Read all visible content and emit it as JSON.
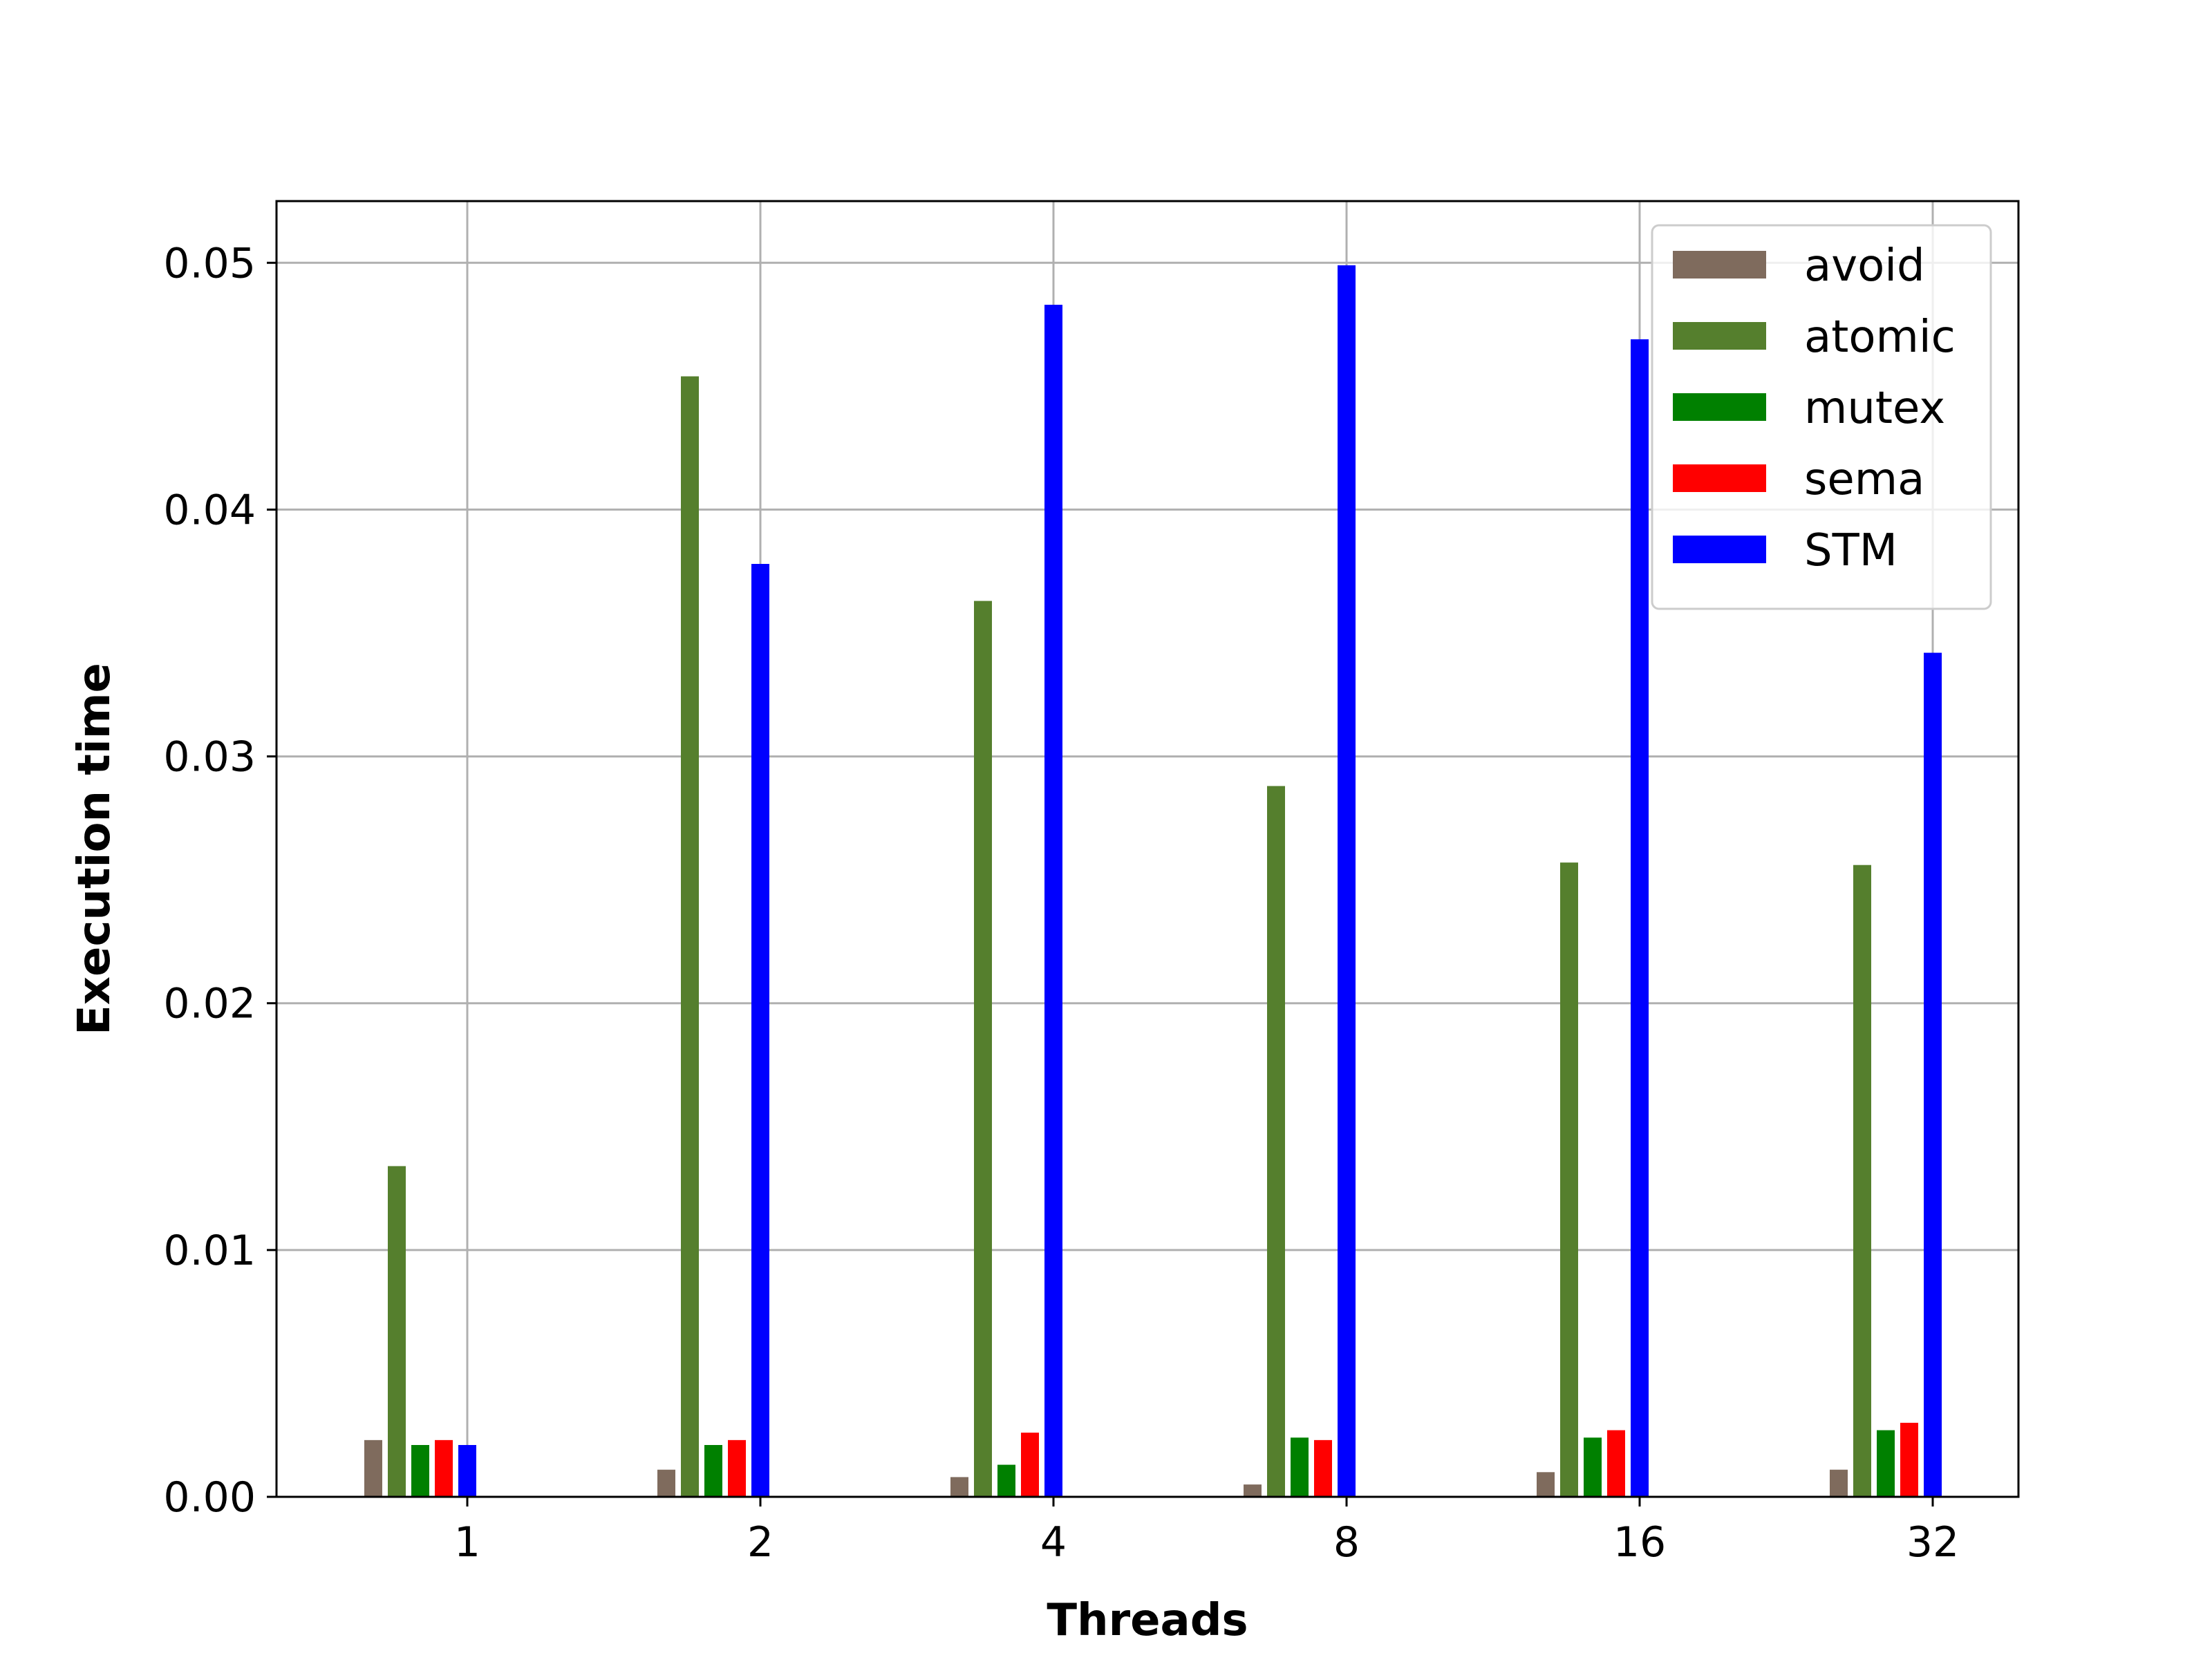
{
  "chart_data": {
    "type": "bar",
    "title": "",
    "xlabel": "Threads",
    "ylabel": "Execution time",
    "categories": [
      "1",
      "2",
      "4",
      "8",
      "16",
      "32"
    ],
    "ylim": [
      0,
      0.0525
    ],
    "yticks": [
      "0.00",
      "0.01",
      "0.02",
      "0.03",
      "0.04",
      "0.05"
    ],
    "ytick_values": [
      0,
      0.01,
      0.02,
      0.03,
      0.04,
      0.05
    ],
    "grid": true,
    "legend_position": "top-right",
    "series": [
      {
        "name": "avoid",
        "color": "#7f6b5d",
        "values": [
          0.0023,
          0.0011,
          0.0008,
          0.0005,
          0.001,
          0.0011
        ]
      },
      {
        "name": "atomic",
        "color": "#557f2d",
        "values": [
          0.0134,
          0.0454,
          0.0363,
          0.0288,
          0.0257,
          0.0256
        ]
      },
      {
        "name": "mutex",
        "color": "#008000",
        "values": [
          0.0021,
          0.0021,
          0.0013,
          0.0024,
          0.0024,
          0.0027
        ]
      },
      {
        "name": "sema",
        "color": "#ff0000",
        "values": [
          0.0023,
          0.0023,
          0.0026,
          0.0023,
          0.0027,
          0.003
        ]
      },
      {
        "name": "STM",
        "color": "#0000ff",
        "values": [
          0.0021,
          0.0378,
          0.0483,
          0.0499,
          0.0469,
          0.0342
        ]
      }
    ]
  }
}
